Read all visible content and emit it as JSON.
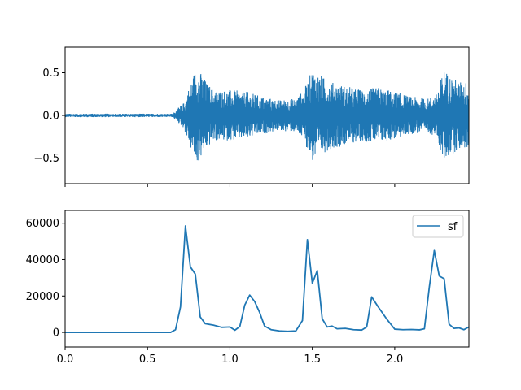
{
  "colors": {
    "line": "#1f77b4",
    "axes": "#000000",
    "background": "#ffffff",
    "legend_border": "#cccccc"
  },
  "chart_data": [
    {
      "type": "line",
      "title": "",
      "xlabel": "",
      "ylabel": "",
      "xlim": [
        0,
        2.45
      ],
      "ylim": [
        -0.8,
        0.8
      ],
      "x_ticks": [
        0.0,
        0.5,
        1.0,
        1.5,
        2.0
      ],
      "x_tick_labels_shown": false,
      "y_ticks": [
        0.5,
        0.0,
        -0.5
      ],
      "y_tick_labels": [
        "0.5",
        "0.0",
        "−0.5"
      ],
      "grid": false,
      "series": [
        {
          "name": "",
          "description_points": {
            "x": [
              0.0,
              0.65,
              0.72,
              0.78,
              0.8,
              0.85,
              0.9,
              1.0,
              1.1,
              1.2,
              1.3,
              1.4,
              1.45,
              1.5,
              1.6,
              1.7,
              1.8,
              1.9,
              2.0,
              2.1,
              2.2,
              2.25,
              2.3,
              2.35,
              2.4,
              2.45
            ],
            "envelope": [
              0.02,
              0.02,
              0.15,
              0.5,
              0.58,
              0.42,
              0.3,
              0.3,
              0.28,
              0.22,
              0.18,
              0.2,
              0.3,
              0.55,
              0.4,
              0.35,
              0.3,
              0.33,
              0.28,
              0.22,
              0.2,
              0.25,
              0.55,
              0.45,
              0.4,
              0.4
            ]
          }
        }
      ]
    },
    {
      "type": "line",
      "title": "",
      "xlabel": "",
      "ylabel": "",
      "xlim": [
        0,
        2.45
      ],
      "ylim": [
        -8000,
        67000
      ],
      "x_ticks": [
        0.0,
        0.5,
        1.0,
        1.5,
        2.0
      ],
      "x_tick_labels": [
        "0.0",
        "0.5",
        "1.0",
        "1.5",
        "2.0"
      ],
      "y_ticks": [
        60000,
        40000,
        20000,
        0
      ],
      "y_tick_labels": [
        "60000",
        "40000",
        "20000",
        "0"
      ],
      "grid": false,
      "legend": {
        "placement": "upper right",
        "entries": [
          "sf"
        ]
      },
      "series": [
        {
          "name": "sf",
          "x": [
            0.0,
            0.05,
            0.1,
            0.15,
            0.2,
            0.25,
            0.3,
            0.35,
            0.4,
            0.45,
            0.5,
            0.55,
            0.6,
            0.64,
            0.67,
            0.7,
            0.73,
            0.76,
            0.79,
            0.82,
            0.85,
            0.9,
            0.95,
            1.0,
            1.03,
            1.06,
            1.09,
            1.12,
            1.15,
            1.18,
            1.21,
            1.25,
            1.3,
            1.35,
            1.4,
            1.44,
            1.47,
            1.5,
            1.53,
            1.56,
            1.59,
            1.62,
            1.65,
            1.7,
            1.75,
            1.8,
            1.83,
            1.86,
            1.9,
            1.95,
            2.0,
            2.05,
            2.1,
            2.15,
            2.18,
            2.21,
            2.24,
            2.27,
            2.3,
            2.33,
            2.36,
            2.39,
            2.42,
            2.45
          ],
          "values": [
            0,
            0,
            0,
            0,
            0,
            0,
            0,
            0,
            0,
            0,
            0,
            0,
            0,
            0,
            1500,
            14000,
            58500,
            36000,
            32000,
            8500,
            4800,
            4000,
            2800,
            3000,
            1200,
            3200,
            15000,
            20500,
            17000,
            11000,
            3500,
            1500,
            800,
            600,
            800,
            6500,
            51000,
            27000,
            34000,
            7500,
            3000,
            3500,
            2000,
            2200,
            1500,
            1300,
            3000,
            19500,
            14000,
            7500,
            1800,
            1500,
            1600,
            1400,
            2000,
            25000,
            45000,
            31000,
            29500,
            4500,
            2200,
            2500,
            1500,
            3000
          ]
        }
      ]
    }
  ]
}
